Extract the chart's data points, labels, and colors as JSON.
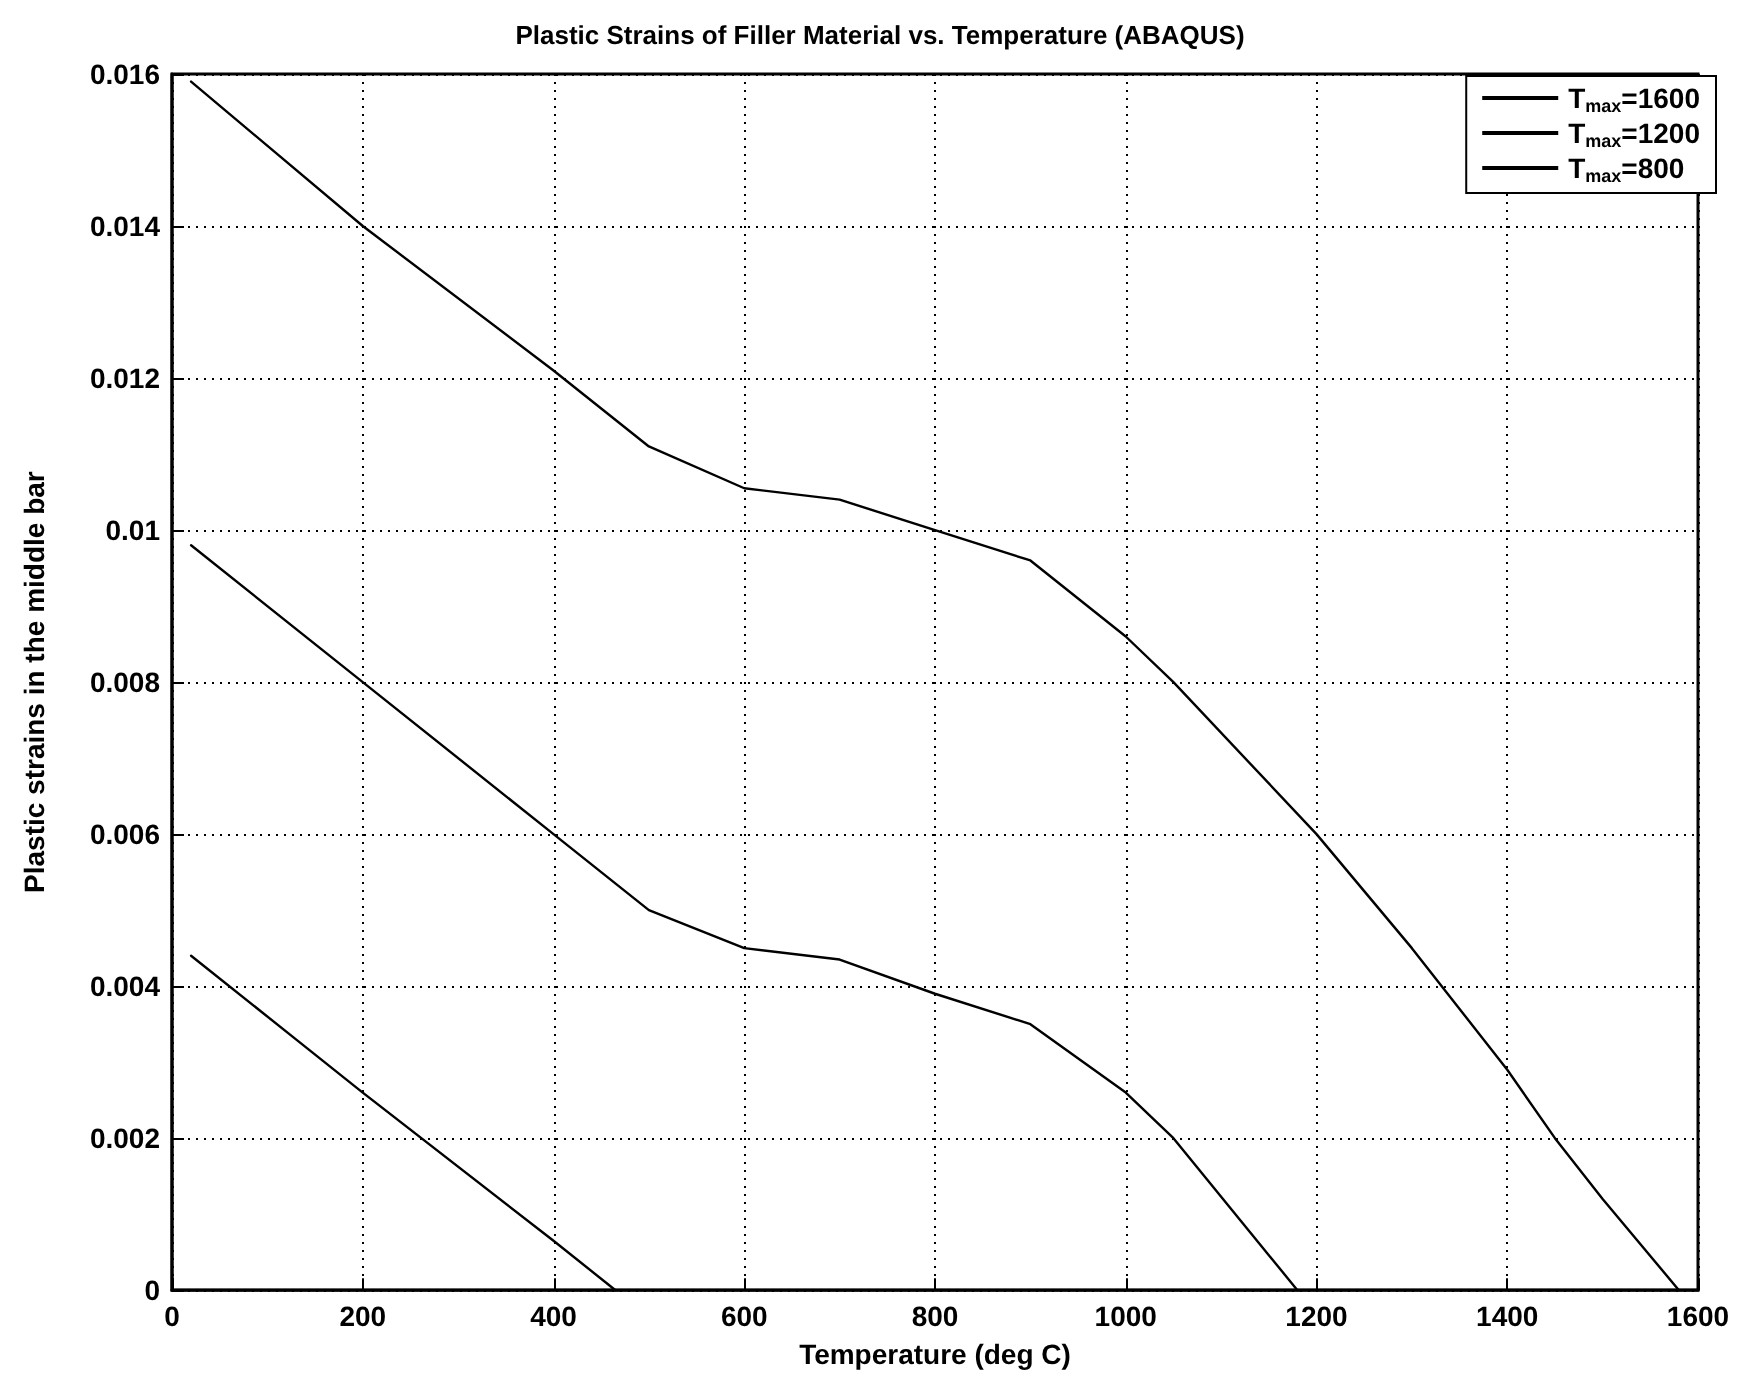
{
  "chart_data": {
    "type": "line",
    "title": "Plastic Strains of Filler Material vs. Temperature (ABAQUS)",
    "xlabel": "Temperature (deg C)",
    "ylabel": "Plastic strains in the middle bar",
    "xlim": [
      0,
      1600
    ],
    "xticks": [
      0,
      200,
      400,
      600,
      800,
      1000,
      1200,
      1400,
      1600
    ],
    "ylim": [
      0,
      0.016
    ],
    "yticks": [
      0,
      0.002,
      0.004,
      0.006,
      0.008,
      0.01,
      0.012,
      0.014,
      0.016
    ],
    "grid": true,
    "legend": "top right",
    "marker": "none",
    "line_style": "solid",
    "series": [
      {
        "name": "T$_{max}$=1600",
        "color": "#000000",
        "x": [
          20,
          200,
          400,
          500,
          600,
          700,
          800,
          900,
          1000,
          1050,
          1200,
          1300,
          1400,
          1450,
          1500,
          1580
        ],
        "values": [
          0.0159,
          0.014,
          0.0121,
          0.0111,
          0.01055,
          0.0104,
          0.01,
          0.0096,
          0.0086,
          0.008,
          0.006,
          0.0045,
          0.0029,
          0.002,
          0.0012,
          0
        ]
      },
      {
        "name": "T$_{max}$=1200",
        "color": "#000000",
        "x": [
          20,
          200,
          400,
          500,
          600,
          700,
          800,
          900,
          1000,
          1050,
          1180
        ],
        "values": [
          0.0098,
          0.008,
          0.006,
          0.005,
          0.0045,
          0.00435,
          0.0039,
          0.0035,
          0.0026,
          0.002,
          0
        ]
      },
      {
        "name": "T$_{max}$=800",
        "color": "#000000",
        "x": [
          20,
          130,
          200,
          400,
          465
        ],
        "values": [
          0.0044,
          0.0033,
          0.0026,
          0.00065,
          0
        ]
      }
    ]
  }
}
